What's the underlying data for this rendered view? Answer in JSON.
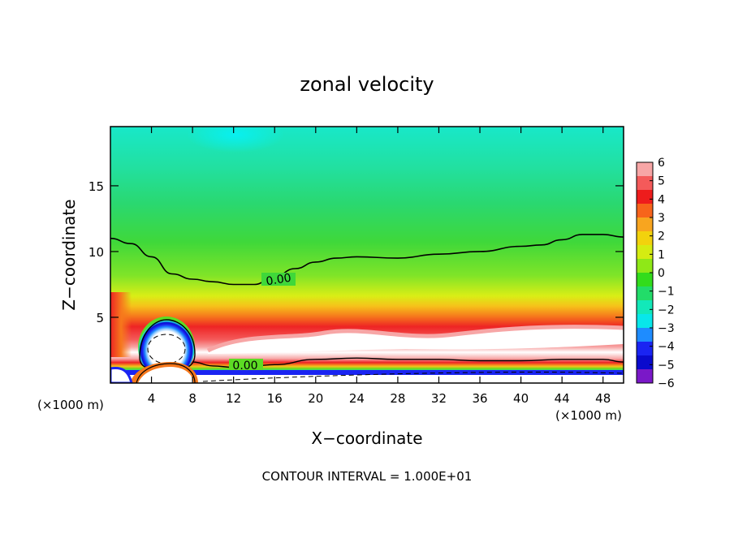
{
  "chart_data": {
    "type": "heatmap",
    "title": "zonal velocity",
    "xlabel": "X−coordinate",
    "ylabel": "Z−coordinate",
    "x_unit_left": "(×1000 m)",
    "x_unit_right": "(×1000 m)",
    "footer": "CONTOUR INTERVAL = 1.000E+01",
    "xlim": [
      0,
      50
    ],
    "ylim": [
      0,
      19.5
    ],
    "xticks": [
      4,
      8,
      12,
      16,
      20,
      24,
      28,
      32,
      36,
      40,
      44,
      48
    ],
    "xtick_labels": [
      "4",
      "8",
      "12",
      "16",
      "20",
      "24",
      "28",
      "32",
      "36",
      "40",
      "44",
      "48"
    ],
    "yticks": [
      5,
      10,
      15
    ],
    "ytick_labels": [
      "5",
      "10",
      "15"
    ],
    "colorbar": {
      "levels": [
        "6",
        "5",
        "4",
        "3",
        "2",
        "1",
        "0",
        "−1",
        "−2",
        "−3",
        "−4",
        "−5",
        "−6"
      ],
      "colors": [
        "#f7a6a6",
        "#f45a5a",
        "#ee1c1c",
        "#f7641b",
        "#f8a51f",
        "#f2d20d",
        "#d5ec12",
        "#8fe817",
        "#32dc1c",
        "#22dc69",
        "#12e8b9",
        "#08e7ea",
        "#1e8cff",
        "#1a24f2",
        "#0a0acd",
        "#7a18c8"
      ]
    },
    "contour_labels": [
      "0.00",
      "0.00"
    ],
    "upper_zero_contour": {
      "x": [
        0,
        2,
        4,
        6,
        8,
        10,
        12,
        14,
        16,
        18,
        20,
        22,
        24,
        28,
        32,
        36,
        40,
        42,
        44,
        46,
        48,
        50
      ],
      "z": [
        11,
        10.6,
        9.6,
        8.3,
        7.9,
        7.7,
        7.5,
        7.5,
        8.1,
        8.7,
        9.2,
        9.5,
        9.6,
        9.5,
        9.8,
        10,
        10.4,
        10.5,
        10.9,
        11.3,
        11.3,
        11.1
      ]
    },
    "lower_zero_contour": {
      "x": [
        8,
        10,
        12,
        14,
        16,
        20,
        24,
        28,
        32,
        36,
        40,
        44,
        48,
        50
      ],
      "z": [
        1.6,
        1.3,
        1.2,
        1.3,
        1.4,
        1.8,
        1.9,
        1.8,
        1.8,
        1.7,
        1.7,
        1.8,
        1.8,
        1.6
      ]
    }
  }
}
